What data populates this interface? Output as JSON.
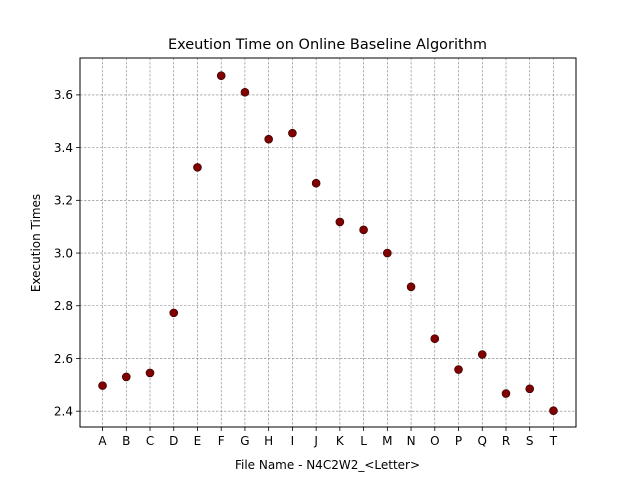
{
  "chart_data": {
    "type": "scatter",
    "title": "Exeution Time on Online Baseline Algorithm",
    "xlabel": "File Name - N4C2W2_<Letter>",
    "ylabel": "Execution Times",
    "categories": [
      "A",
      "B",
      "C",
      "D",
      "E",
      "F",
      "G",
      "H",
      "I",
      "J",
      "K",
      "L",
      "M",
      "N",
      "O",
      "P",
      "Q",
      "R",
      "S",
      "T"
    ],
    "values": [
      2.497,
      2.53,
      2.545,
      2.773,
      3.325,
      3.673,
      3.61,
      3.432,
      3.455,
      3.265,
      3.118,
      3.088,
      3.0,
      2.872,
      2.675,
      2.558,
      2.615,
      2.467,
      2.485,
      2.402
    ],
    "ylim": [
      2.34,
      3.74
    ],
    "yticks": [
      "2.4",
      "2.6",
      "2.8",
      "3.0",
      "3.2",
      "3.4",
      "3.6"
    ],
    "grid": true,
    "marker_color": "#800000",
    "marker_edge_color": "#2a0000",
    "grid_color": "#808080"
  }
}
